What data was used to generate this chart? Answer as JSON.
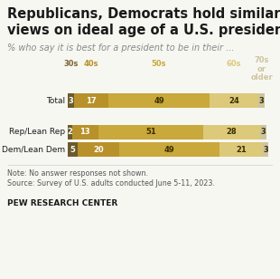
{
  "title": "Republicans, Democrats hold similar\nviews on ideal age of a U.S. president",
  "subtitle": "% who say it is best for a president to be in their ...",
  "categories": [
    "Total",
    "Rep/Lean Rep",
    "Dem/Lean Dem"
  ],
  "age_labels": [
    "30s",
    "40s",
    "50s",
    "60s",
    "70s\nor\nolder"
  ],
  "values": [
    [
      3,
      17,
      49,
      24,
      3
    ],
    [
      2,
      13,
      51,
      28,
      3
    ],
    [
      5,
      20,
      49,
      21,
      3
    ]
  ],
  "colors": [
    "#6b5a2d",
    "#b8912a",
    "#c9a83c",
    "#dcc97a",
    "#cdc4a0"
  ],
  "header_colors": [
    "#7a6530",
    "#b8912a",
    "#c9a83c",
    "#dcc97a",
    "#cdc4a0"
  ],
  "text_colors": [
    "#ffffff",
    "#ffffff",
    "#3a2e00",
    "#3a2e00",
    "#3a2e00"
  ],
  "note": "Note: No answer responses not shown.",
  "source": "Source: Survey of U.S. adults conducted June 5-11, 2023.",
  "credit": "PEW RESEARCH CENTER",
  "background_color": "#f7f7f2",
  "title_color": "#1a1a1a",
  "subtitle_color": "#888888",
  "category_color": "#1a1a1a",
  "note_color": "#555555"
}
